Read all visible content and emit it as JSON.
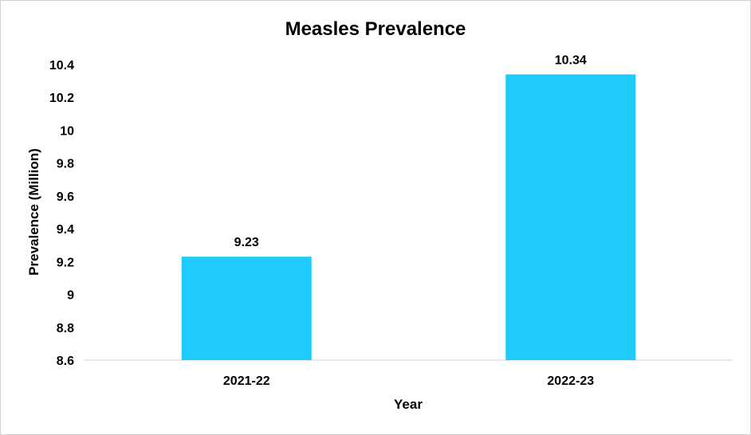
{
  "chart_data": {
    "type": "bar",
    "title": "Measles Prevalence",
    "xlabel": "Year",
    "ylabel": "Prevalence (Million)",
    "categories": [
      "2021-22",
      "2022-23"
    ],
    "values": [
      9.23,
      10.34
    ],
    "data_labels": [
      "9.23",
      "10.34"
    ],
    "ylim": [
      8.6,
      10.4
    ],
    "yticks": [
      8.6,
      8.8,
      9,
      9.2,
      9.4,
      9.6,
      9.8,
      10,
      10.2,
      10.4
    ],
    "ytick_labels": [
      "8.6",
      "8.8",
      "9",
      "9.2",
      "9.4",
      "9.6",
      "9.8",
      "10",
      "10.2",
      "10.4"
    ],
    "bar_color": "#1ECBFC",
    "grid": false,
    "legend": "none"
  }
}
